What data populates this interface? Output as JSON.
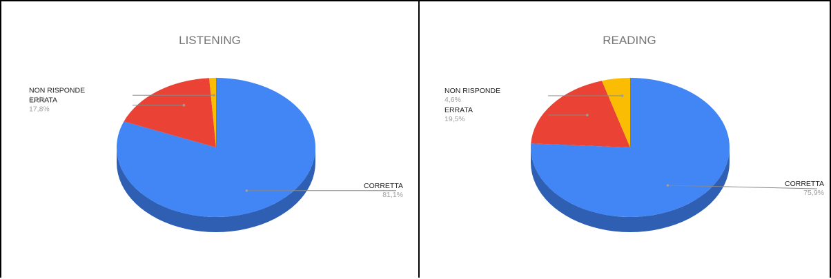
{
  "chart_data": [
    {
      "type": "pie",
      "title": "LISTENING",
      "three_d": true,
      "slices": [
        {
          "label": "CORRETTA",
          "value": 81.1,
          "display": "81,1%",
          "color": "#4285f4",
          "side_color": "#2f5fb3"
        },
        {
          "label": "ERRATA",
          "value": 17.8,
          "display": "17,8%",
          "color": "#ea4335",
          "side_color": "#a8302a"
        },
        {
          "label": "NON RISPONDE",
          "value": 1.1,
          "display": "1,1%",
          "color": "#fbbc04",
          "side_color": "#b88a03"
        }
      ]
    },
    {
      "type": "pie",
      "title": "READING",
      "three_d": true,
      "slices": [
        {
          "label": "CORRETTA",
          "value": 75.9,
          "display": "75,9%",
          "color": "#4285f4",
          "side_color": "#2f5fb3"
        },
        {
          "label": "ERRATA",
          "value": 19.5,
          "display": "19,5%",
          "color": "#ea4335",
          "side_color": "#a8302a"
        },
        {
          "label": "NON RISPONDE",
          "value": 4.6,
          "display": "4,6%",
          "color": "#fbbc04",
          "side_color": "#b88a03"
        }
      ]
    }
  ]
}
